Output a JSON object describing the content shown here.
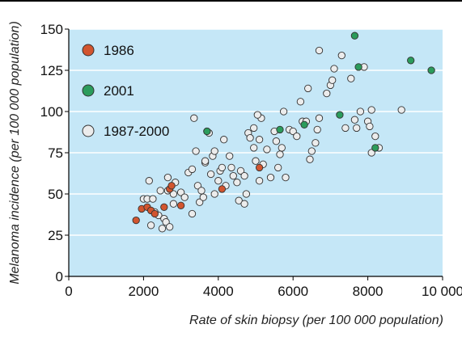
{
  "chart_data": {
    "type": "scatter",
    "title": "",
    "xlabel": "Rate of skin biopsy (per 100 000 population)",
    "ylabel": "Melanoma incidence (per 100 000 population)",
    "xlim": [
      0,
      10000
    ],
    "ylim": [
      0,
      150
    ],
    "x_ticks": [
      0,
      2000,
      4000,
      6000,
      8000,
      10000
    ],
    "x_tick_labels": [
      "0",
      "2000",
      "4000",
      "6000",
      "8000",
      "10 000"
    ],
    "y_ticks": [
      0,
      25,
      50,
      75,
      100,
      125,
      150
    ],
    "y_tick_labels": [
      "0",
      "25",
      "50",
      "75",
      "100",
      "125",
      "150"
    ],
    "grid": "horizontal",
    "legend_position": "top-left",
    "plot_background": "#c5e7f7",
    "series": [
      {
        "name": "1986",
        "color": "#d2552f",
        "points": [
          [
            1800,
            34
          ],
          [
            1950,
            41
          ],
          [
            2100,
            42
          ],
          [
            2200,
            40
          ],
          [
            2300,
            38
          ],
          [
            2550,
            42
          ],
          [
            2700,
            53
          ],
          [
            2750,
            55
          ],
          [
            3000,
            43
          ],
          [
            4100,
            53
          ],
          [
            5100,
            66
          ]
        ]
      },
      {
        "name": "2001",
        "color": "#2b9c5c",
        "points": [
          [
            3700,
            88
          ],
          [
            5650,
            89
          ],
          [
            6300,
            92
          ],
          [
            7250,
            98
          ],
          [
            7650,
            146
          ],
          [
            7750,
            127
          ],
          [
            8200,
            78
          ],
          [
            9150,
            131
          ],
          [
            9700,
            125
          ]
        ]
      },
      {
        "name": "1987-2000",
        "color": "#ececec",
        "points": [
          [
            2000,
            47
          ],
          [
            2100,
            47
          ],
          [
            2150,
            58
          ],
          [
            2200,
            31
          ],
          [
            2250,
            47
          ],
          [
            2300,
            39
          ],
          [
            2400,
            37
          ],
          [
            2450,
            52
          ],
          [
            2500,
            29
          ],
          [
            2550,
            35
          ],
          [
            2600,
            33
          ],
          [
            2650,
            52
          ],
          [
            2650,
            60
          ],
          [
            2700,
            30
          ],
          [
            2800,
            44
          ],
          [
            2800,
            50
          ],
          [
            2850,
            57
          ],
          [
            3000,
            51
          ],
          [
            3100,
            48
          ],
          [
            3200,
            63
          ],
          [
            3300,
            38
          ],
          [
            3300,
            65
          ],
          [
            3350,
            96
          ],
          [
            3400,
            76
          ],
          [
            3450,
            55
          ],
          [
            3500,
            45
          ],
          [
            3550,
            52
          ],
          [
            3600,
            48
          ],
          [
            3650,
            69
          ],
          [
            3650,
            70
          ],
          [
            3700,
            88
          ],
          [
            3750,
            87
          ],
          [
            3800,
            62
          ],
          [
            3850,
            73
          ],
          [
            3900,
            50
          ],
          [
            3900,
            76
          ],
          [
            4000,
            58
          ],
          [
            4050,
            64
          ],
          [
            4100,
            66
          ],
          [
            4150,
            83
          ],
          [
            4200,
            55
          ],
          [
            4300,
            73
          ],
          [
            4350,
            66
          ],
          [
            4400,
            61
          ],
          [
            4500,
            57
          ],
          [
            4550,
            46
          ],
          [
            4600,
            64
          ],
          [
            4700,
            61
          ],
          [
            4700,
            44
          ],
          [
            4750,
            50
          ],
          [
            4800,
            87
          ],
          [
            4850,
            84
          ],
          [
            4950,
            78
          ],
          [
            4950,
            90
          ],
          [
            5000,
            70
          ],
          [
            5100,
            58
          ],
          [
            5100,
            83
          ],
          [
            5150,
            96
          ],
          [
            5200,
            68
          ],
          [
            5300,
            77
          ],
          [
            5400,
            60
          ],
          [
            5500,
            88
          ],
          [
            5550,
            82
          ],
          [
            5600,
            66
          ],
          [
            5650,
            74
          ],
          [
            5700,
            78
          ],
          [
            5750,
            100
          ],
          [
            5800,
            60
          ],
          [
            5900,
            89
          ],
          [
            6000,
            88
          ],
          [
            6100,
            85
          ],
          [
            6200,
            106
          ],
          [
            6250,
            94
          ],
          [
            6350,
            94
          ],
          [
            6400,
            114
          ],
          [
            6450,
            71
          ],
          [
            6500,
            76
          ],
          [
            6600,
            81
          ],
          [
            6650,
            89
          ],
          [
            6700,
            137
          ],
          [
            6900,
            111
          ],
          [
            7000,
            116
          ],
          [
            7050,
            119
          ],
          [
            7100,
            126
          ],
          [
            7300,
            134
          ],
          [
            7400,
            90
          ],
          [
            7550,
            120
          ],
          [
            7650,
            95
          ],
          [
            7700,
            90
          ],
          [
            7900,
            127
          ],
          [
            8000,
            94
          ],
          [
            8050,
            91
          ],
          [
            8100,
            101
          ],
          [
            8100,
            75
          ],
          [
            8200,
            85
          ],
          [
            8300,
            78
          ],
          [
            8900,
            101
          ],
          [
            5050,
            98
          ],
          [
            6700,
            96
          ],
          [
            7800,
            100
          ]
        ]
      }
    ]
  }
}
